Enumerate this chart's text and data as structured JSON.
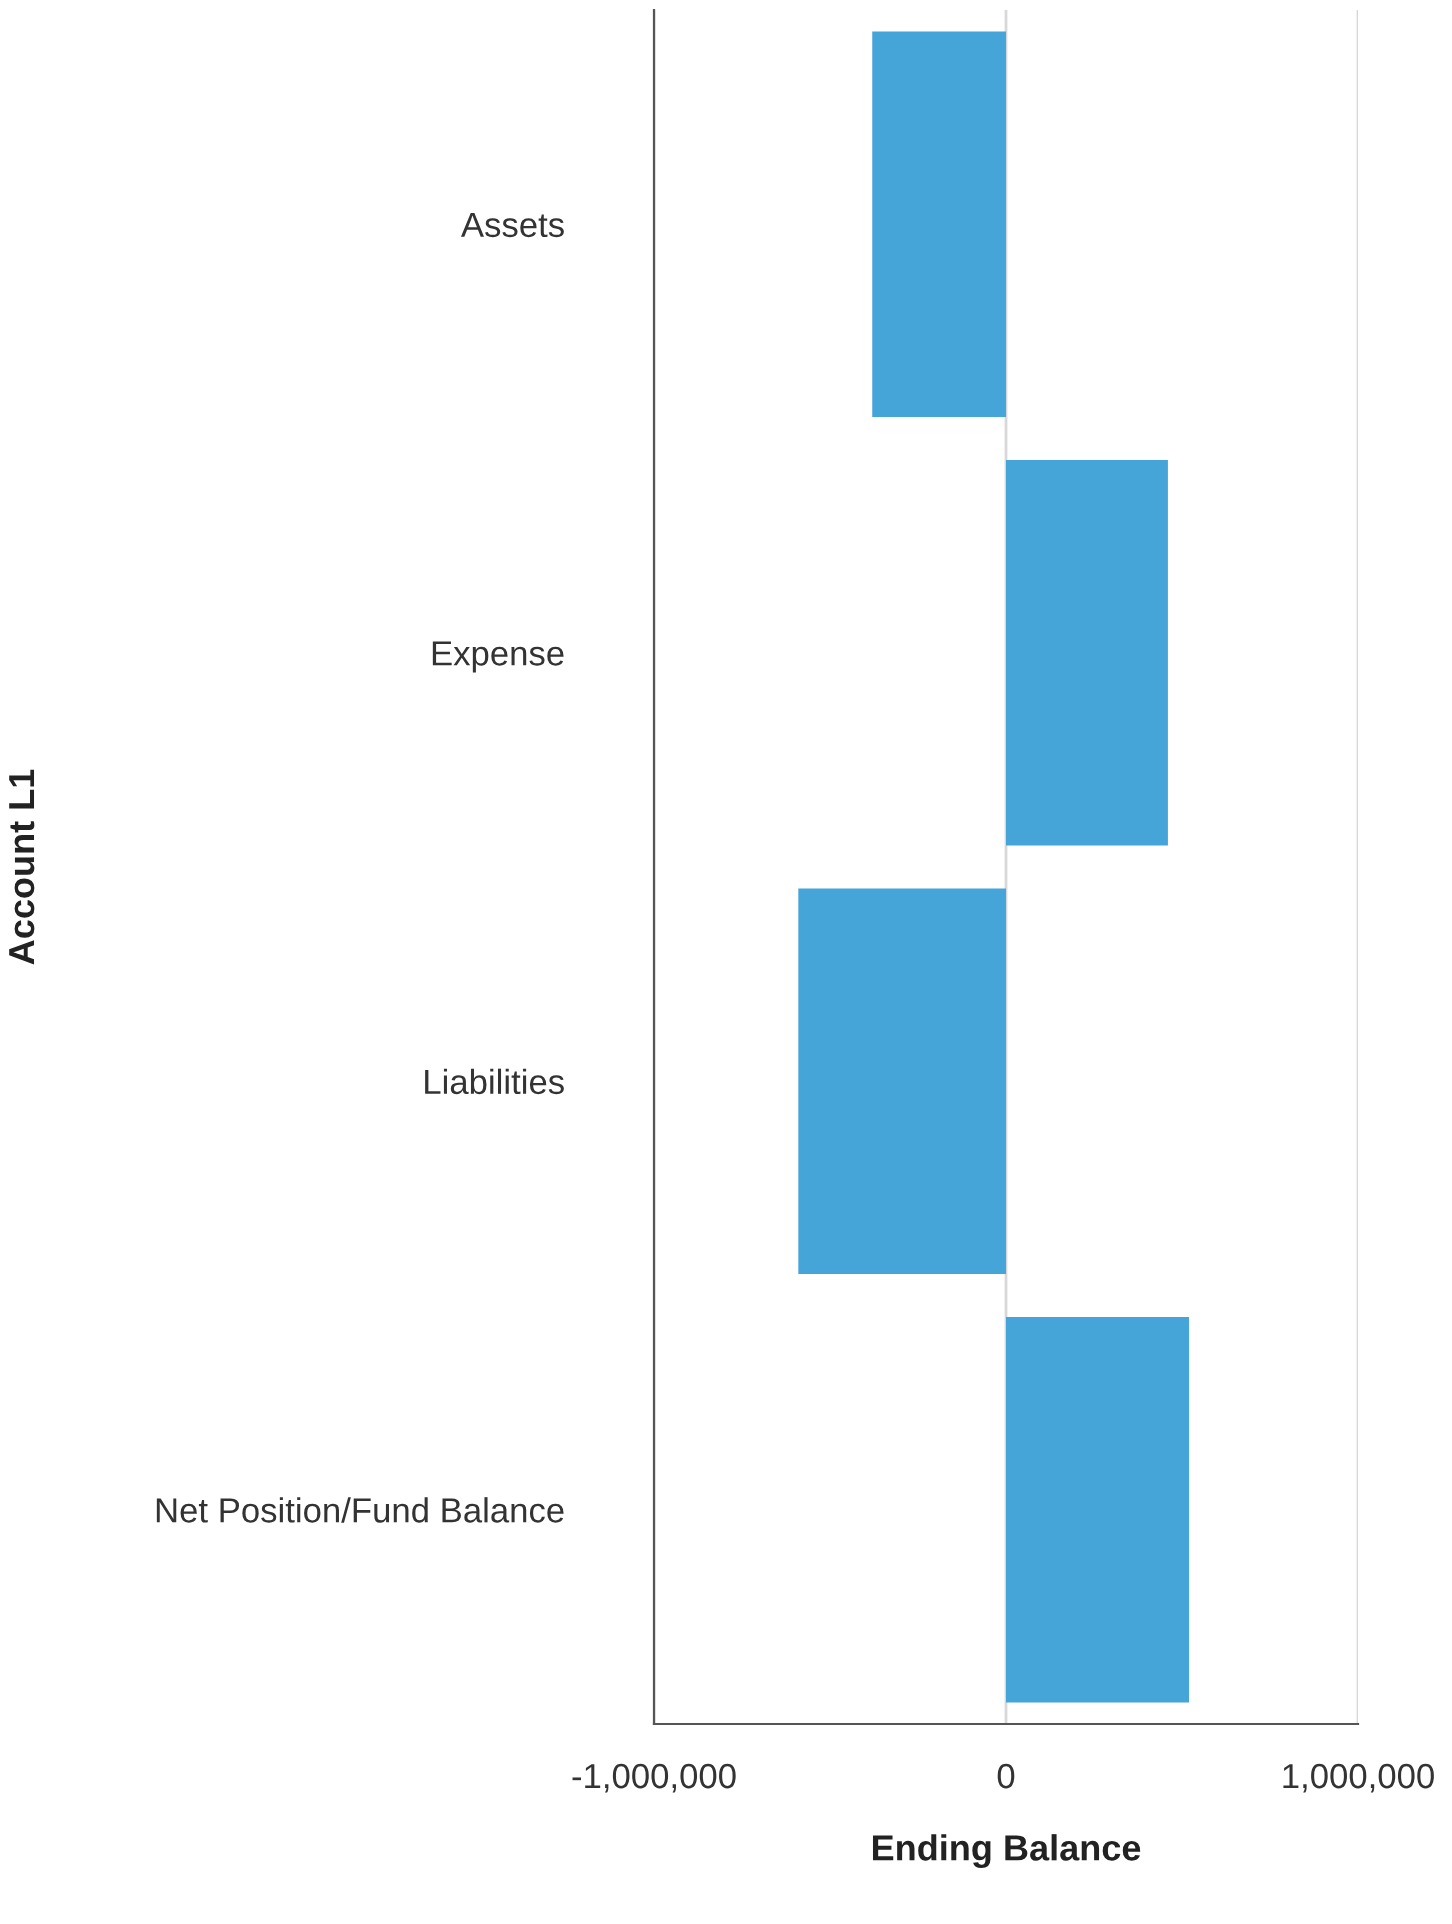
{
  "chart_data": {
    "type": "bar",
    "orientation": "horizontal",
    "xlabel": "Ending Balance",
    "ylabel": "Account L1",
    "categories": [
      "Assets",
      "Expense",
      "Liabilities",
      "Net Position/Fund Balance"
    ],
    "values": [
      -380000,
      460000,
      -590000,
      520000
    ],
    "color": "#46a5d8",
    "xlim": [
      -1000000,
      1000000
    ],
    "xticks": [
      {
        "value": -1000000,
        "label": "-1,000,000"
      },
      0,
      {
        "value": 1000000,
        "label": "1,000,000"
      }
    ],
    "grid": "x"
  }
}
